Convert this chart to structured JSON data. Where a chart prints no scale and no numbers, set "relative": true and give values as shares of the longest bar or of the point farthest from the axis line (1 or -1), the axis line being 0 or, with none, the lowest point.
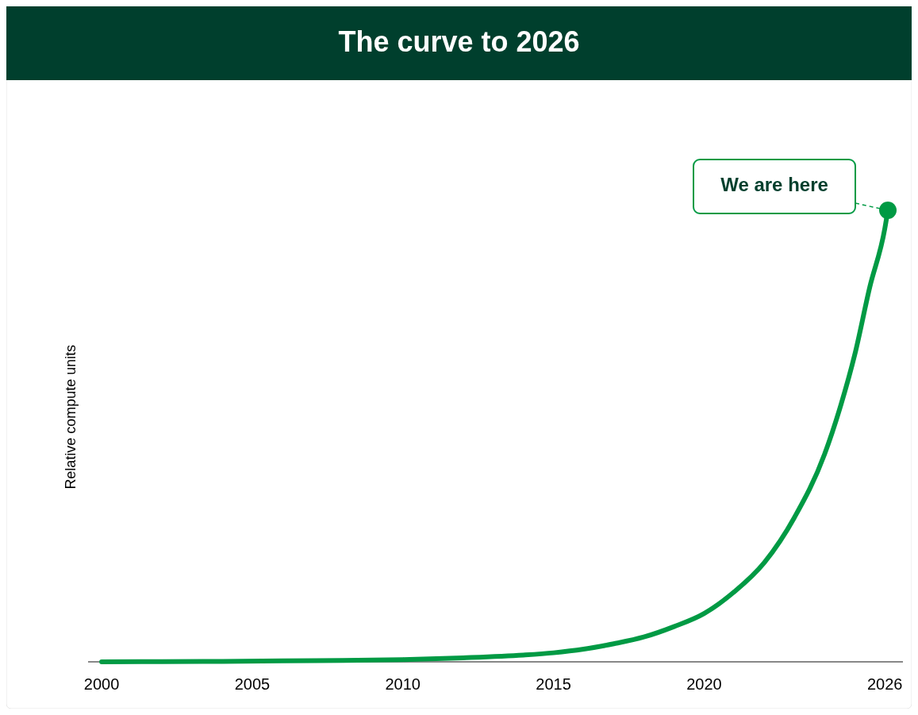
{
  "chart_data": {
    "type": "line",
    "title": "The curve to 2026",
    "ylabel": "Relative compute units",
    "relative": true,
    "x": [
      2000,
      2002,
      2004,
      2006,
      2008,
      2010,
      2012,
      2014,
      2015,
      2016,
      2017,
      2018,
      2019,
      2020,
      2021,
      2022,
      2023,
      2024,
      2024.5,
      2025,
      2025.5,
      2026,
      2026.1
    ],
    "series": [
      {
        "type": "line",
        "color": "#009a44",
        "marker": "none",
        "values": [
          0,
          0.0005,
          0.001,
          0.002,
          0.003,
          0.005,
          0.009,
          0.015,
          0.02,
          0.028,
          0.04,
          0.055,
          0.078,
          0.107,
          0.155,
          0.22,
          0.32,
          0.46,
          0.56,
          0.68,
          0.83,
          0.96,
          1
        ]
      },
      {
        "type": "scatter",
        "color": "#009a44",
        "marker": "circle",
        "x": [
          2026.1
        ],
        "values": [
          1
        ]
      }
    ],
    "xlim": [
      1999.55,
      2026.6
    ],
    "xticks": [
      2000,
      2005,
      2010,
      2015,
      2020,
      2026
    ],
    "annotations": [
      "We are here"
    ],
    "grid": false
  }
}
